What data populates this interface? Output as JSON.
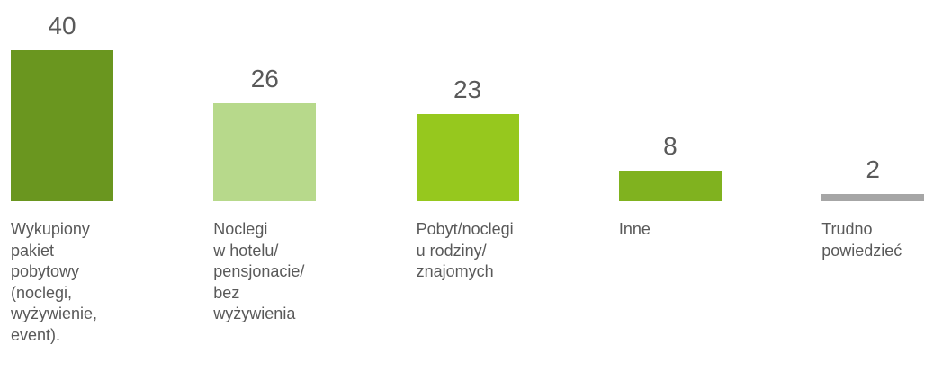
{
  "chart_data": {
    "type": "bar",
    "categories": [
      "Wykupiony\npakiet\npobytowy\n(noclegi,\nwyżywienie,\nevent).",
      "Noclegi\nw hotelu/\npensjonacie/\nbez\nwyżywienia",
      "Pobyt/noclegi\nu rodziny/\nznajomych",
      "Inne",
      "Trudno\npowiedzieć"
    ],
    "values": [
      40,
      26,
      23,
      8,
      2
    ],
    "colors": [
      "#6a961f",
      "#b7d98b",
      "#96c81e",
      "#80b21f",
      "#a6a6a6"
    ]
  }
}
